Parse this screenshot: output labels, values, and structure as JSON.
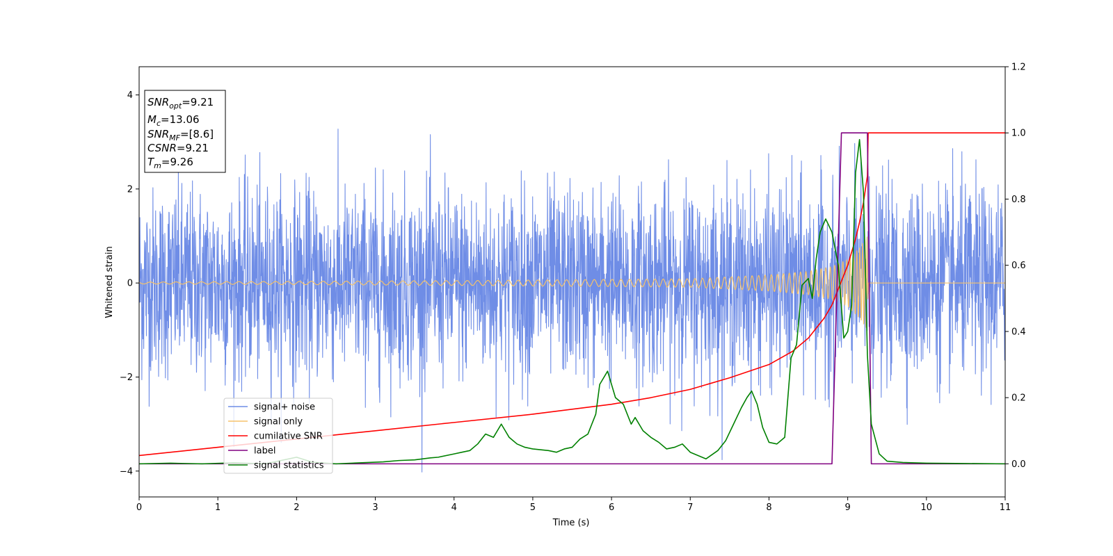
{
  "chart_data": {
    "type": "line",
    "xlabel": "Time (s)",
    "ylabel": "Whitened strain",
    "xlim": [
      0,
      11
    ],
    "ylim_left": [
      -4.55,
      4.6
    ],
    "ylim_right": [
      -0.1,
      1.2
    ],
    "x_ticks": [
      0,
      1,
      2,
      3,
      4,
      5,
      6,
      7,
      8,
      9,
      10,
      11
    ],
    "y_ticks_left": [
      -4,
      -2,
      0,
      2,
      4
    ],
    "y_ticks_right": [
      0.0,
      0.2,
      0.4,
      0.6,
      0.8,
      1.0,
      1.2
    ],
    "grid": false,
    "legend_position": "lower-left",
    "info_box": {
      "snr_opt": {
        "base": "SNR",
        "sub": "opt",
        "value": "=9.21"
      },
      "mc": {
        "base": "M",
        "sub": "c",
        "value": "=13.06"
      },
      "snr_mf": {
        "base": "SNR",
        "sub": "MF",
        "value": "=[8.6]"
      },
      "csnr": {
        "base": "CSNR",
        "value": "=9.21"
      },
      "tm": {
        "base": "T",
        "sub": "m",
        "value": "=9.26"
      }
    },
    "series": [
      {
        "name": "signal+ noise",
        "axis": "left",
        "color": "#6f8de6",
        "kind": "noise",
        "sigma": 1.0,
        "clip": [
          -4.1,
          4.15
        ]
      },
      {
        "name": "signal only",
        "axis": "left",
        "color": "#f5c26b",
        "kind": "chirp",
        "t_merge": 9.26,
        "envelope": [
          [
            0,
            0.02
          ],
          [
            4,
            0.05
          ],
          [
            7,
            0.09
          ],
          [
            8,
            0.17
          ],
          [
            8.5,
            0.25
          ],
          [
            8.8,
            0.35
          ],
          [
            9.0,
            0.5
          ],
          [
            9.15,
            0.75
          ],
          [
            9.25,
            1.0
          ],
          [
            9.26,
            0.0
          ],
          [
            11,
            0.0
          ]
        ]
      },
      {
        "name": "cumilative SNR",
        "axis": "right",
        "color": "#ff0000",
        "x": [
          0,
          1,
          2,
          3,
          4,
          5,
          5.5,
          6,
          6.5,
          7,
          7.5,
          8,
          8.3,
          8.5,
          8.7,
          8.8,
          8.9,
          9.0,
          9.1,
          9.15,
          9.2,
          9.25,
          9.26,
          9.3,
          11
        ],
        "y": [
          0.025,
          0.05,
          0.075,
          0.1,
          0.125,
          0.15,
          0.165,
          0.18,
          0.2,
          0.225,
          0.26,
          0.3,
          0.34,
          0.38,
          0.44,
          0.48,
          0.54,
          0.6,
          0.68,
          0.73,
          0.79,
          0.87,
          1.0,
          1.0,
          1.0
        ]
      },
      {
        "name": "label",
        "axis": "right",
        "color": "#800080",
        "x": [
          0,
          8.8,
          8.92,
          9.25,
          9.3,
          11
        ],
        "y": [
          0.0,
          0.0,
          1.0,
          1.0,
          0.0,
          0.0
        ]
      },
      {
        "name": "signal statistics",
        "axis": "right",
        "color": "#008000",
        "x": [
          0,
          0.4,
          0.8,
          1.2,
          1.6,
          1.9,
          2.0,
          2.2,
          2.5,
          2.8,
          3.1,
          3.3,
          3.5,
          3.7,
          3.8,
          4.0,
          4.1,
          4.2,
          4.3,
          4.4,
          4.5,
          4.6,
          4.65,
          4.7,
          4.8,
          4.9,
          5.0,
          5.2,
          5.3,
          5.4,
          5.5,
          5.6,
          5.7,
          5.8,
          5.85,
          5.95,
          6.05,
          6.15,
          6.25,
          6.3,
          6.4,
          6.5,
          6.6,
          6.7,
          6.8,
          6.9,
          7.0,
          7.1,
          7.2,
          7.35,
          7.45,
          7.55,
          7.65,
          7.72,
          7.78,
          7.85,
          7.92,
          8.0,
          8.1,
          8.2,
          8.28,
          8.35,
          8.42,
          8.5,
          8.55,
          8.6,
          8.65,
          8.72,
          8.8,
          8.88,
          8.95,
          9.0,
          9.05,
          9.1,
          9.15,
          9.2,
          9.25,
          9.3,
          9.4,
          9.5,
          9.7,
          10.0,
          10.5,
          11
        ],
        "y": [
          0.0,
          0.002,
          0.0,
          0.003,
          0.0,
          0.015,
          0.02,
          0.005,
          0.0,
          0.003,
          0.006,
          0.01,
          0.012,
          0.018,
          0.02,
          0.03,
          0.035,
          0.04,
          0.06,
          0.09,
          0.08,
          0.12,
          0.1,
          0.08,
          0.06,
          0.05,
          0.045,
          0.04,
          0.035,
          0.045,
          0.05,
          0.075,
          0.09,
          0.15,
          0.24,
          0.28,
          0.2,
          0.18,
          0.12,
          0.14,
          0.1,
          0.08,
          0.065,
          0.045,
          0.05,
          0.06,
          0.035,
          0.025,
          0.015,
          0.04,
          0.07,
          0.12,
          0.17,
          0.2,
          0.22,
          0.18,
          0.11,
          0.065,
          0.06,
          0.08,
          0.32,
          0.36,
          0.54,
          0.56,
          0.5,
          0.62,
          0.7,
          0.74,
          0.7,
          0.6,
          0.38,
          0.4,
          0.48,
          0.88,
          0.98,
          0.82,
          0.33,
          0.12,
          0.03,
          0.008,
          0.004,
          0.002,
          0.001,
          0.0
        ]
      }
    ]
  }
}
